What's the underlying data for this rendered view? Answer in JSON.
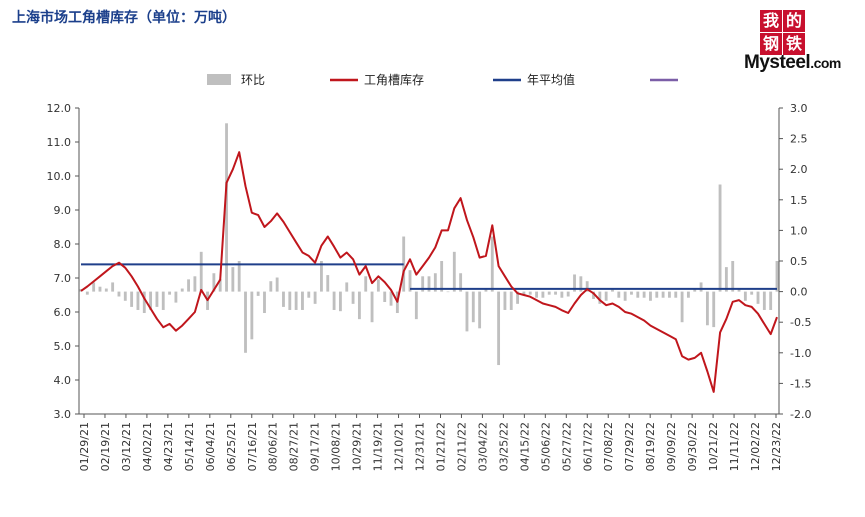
{
  "title": "上海市场工角槽库存（单位：万吨）",
  "logo": {
    "chars": [
      "我",
      "的",
      "钢",
      "铁"
    ],
    "brand": "Mysteel",
    "suffix": ".com"
  },
  "chart_data": {
    "type": "bar+line",
    "legend": [
      {
        "name": "环比",
        "kind": "bar",
        "color": "#bfbfbf"
      },
      {
        "name": "工角槽库存",
        "kind": "line",
        "color": "#c0161c"
      },
      {
        "name": "年平均值",
        "kind": "line",
        "color": "#1f3f8a"
      },
      {
        "name": "",
        "kind": "line",
        "color": "#7b5ea7"
      }
    ],
    "legend_position": "top",
    "y_left": {
      "min": 3.0,
      "max": 12.0,
      "step": 1.0,
      "ticks": [
        "3.0",
        "4.0",
        "5.0",
        "6.0",
        "7.0",
        "8.0",
        "9.0",
        "10.0",
        "11.0",
        "12.0"
      ]
    },
    "y_right": {
      "min": -2.0,
      "max": 3.0,
      "step": 0.5,
      "ticks": [
        "-2.0",
        "-1.5",
        "-1.0",
        "-0.5",
        "0.0",
        "0.5",
        "1.0",
        "1.5",
        "2.0",
        "2.5",
        "3.0"
      ]
    },
    "x_tick_labels": [
      "01/29/21",
      "02/19/21",
      "03/12/21",
      "04/02/21",
      "04/23/21",
      "05/14/21",
      "06/04/21",
      "06/25/21",
      "07/16/21",
      "08/06/21",
      "08/27/21",
      "09/17/21",
      "10/08/21",
      "10/29/21",
      "11/19/21",
      "12/10/21",
      "12/31/21",
      "01/21/22",
      "02/11/22",
      "03/04/22",
      "03/25/22",
      "04/15/22",
      "05/06/22",
      "05/27/22",
      "06/17/22",
      "07/08/22",
      "07/29/22",
      "08/19/22",
      "09/09/22",
      "09/30/22",
      "10/21/22",
      "11/11/22",
      "12/02/22",
      "12/23/22"
    ],
    "inventory": [
      6.62,
      6.75,
      6.9,
      7.05,
      7.2,
      7.35,
      7.45,
      7.3,
      7.05,
      6.75,
      6.4,
      6.1,
      5.8,
      5.55,
      5.65,
      5.45,
      5.6,
      5.8,
      6.0,
      6.65,
      6.35,
      6.65,
      6.95,
      9.8,
      10.2,
      10.7,
      9.7,
      8.92,
      8.85,
      8.5,
      8.67,
      8.9,
      8.65,
      8.35,
      8.05,
      7.75,
      7.65,
      7.45,
      7.95,
      8.22,
      7.92,
      7.6,
      7.75,
      7.55,
      7.1,
      7.35,
      6.85,
      7.05,
      6.88,
      6.65,
      6.3,
      7.2,
      7.55,
      7.1,
      7.35,
      7.6,
      7.9,
      8.4,
      8.4,
      9.05,
      9.35,
      8.7,
      8.2,
      7.6,
      7.65,
      8.55,
      7.35,
      7.05,
      6.75,
      6.55,
      6.5,
      6.45,
      6.35,
      6.25,
      6.2,
      6.15,
      6.05,
      5.97,
      6.25,
      6.5,
      6.67,
      6.55,
      6.35,
      6.2,
      6.25,
      6.15,
      6.0,
      5.95,
      5.85,
      5.75,
      5.6,
      5.5,
      5.4,
      5.3,
      5.2,
      4.7,
      4.6,
      4.65,
      4.8,
      4.25,
      3.65,
      5.4,
      5.8,
      6.3,
      6.35,
      6.2,
      6.15,
      5.95,
      5.65,
      5.35,
      5.85
    ],
    "wow_change": [
      0.04,
      -0.05,
      0.15,
      0.08,
      0.05,
      0.15,
      -0.08,
      -0.15,
      -0.25,
      -0.3,
      -0.35,
      -0.3,
      -0.25,
      -0.3,
      -0.05,
      -0.18,
      0.05,
      0.2,
      0.25,
      0.65,
      -0.3,
      0.3,
      0.2,
      2.75,
      0.4,
      0.5,
      -1.0,
      -0.78,
      -0.07,
      -0.35,
      0.17,
      0.23,
      -0.25,
      -0.3,
      -0.3,
      -0.3,
      -0.1,
      -0.2,
      0.5,
      0.27,
      -0.3,
      -0.32,
      0.15,
      -0.2,
      -0.45,
      0.25,
      -0.5,
      0.2,
      -0.17,
      -0.23,
      -0.35,
      0.9,
      0.35,
      -0.45,
      0.25,
      0.25,
      0.3,
      0.5,
      0.0,
      0.65,
      0.3,
      -0.65,
      -0.5,
      -0.6,
      0.05,
      0.9,
      -1.2,
      -0.3,
      -0.3,
      -0.2,
      -0.05,
      -0.05,
      -0.1,
      -0.1,
      -0.05,
      -0.05,
      -0.1,
      -0.08,
      0.28,
      0.25,
      0.17,
      -0.12,
      -0.2,
      -0.15,
      0.05,
      -0.1,
      -0.15,
      -0.05,
      -0.1,
      -0.1,
      -0.15,
      -0.1,
      -0.1,
      -0.1,
      -0.1,
      -0.5,
      -0.1,
      0.05,
      0.15,
      -0.55,
      -0.58,
      1.75,
      0.4,
      0.5,
      0.05,
      -0.15,
      -0.05,
      -0.2,
      -0.3,
      -0.3,
      0.5
    ],
    "annual_average": [
      {
        "year": "2021",
        "value": 7.4
      },
      {
        "year": "2022",
        "value": 6.68
      }
    ]
  }
}
